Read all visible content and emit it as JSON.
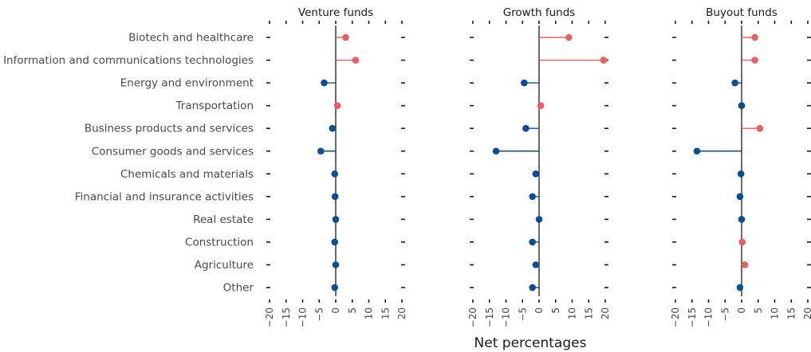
{
  "chart_data": {
    "type": "lollipop",
    "xlabel": "Net percentages",
    "xlim": [
      -20,
      20
    ],
    "xticks": [
      -20,
      -15,
      -10,
      -5,
      0,
      5,
      10,
      15,
      20
    ],
    "colors": {
      "positive": "#e8605f",
      "negative": "#0a4f96",
      "axis": "#1a1a1a"
    },
    "categories": [
      "Biotech and healthcare",
      "Information and communications technologies",
      "Energy and environment",
      "Transportation",
      "Business products and services",
      "Consumer goods and services",
      "Chemicals and materials",
      "Financial and insurance activities",
      "Real estate",
      "Construction",
      "Agriculture",
      "Other"
    ],
    "series": [
      {
        "name": "Venture funds",
        "values": [
          3,
          6,
          -3.5,
          0.5,
          -1,
          -4.5,
          -0.3,
          -0.2,
          0,
          -0.3,
          0,
          -0.3
        ]
      },
      {
        "name": "Growth funds",
        "values": [
          9,
          19.5,
          -4.5,
          0.5,
          -4,
          -13,
          -1,
          -2,
          0,
          -2,
          -1,
          -2
        ]
      },
      {
        "name": "Buyout funds",
        "values": [
          4,
          4,
          -2,
          0,
          5.5,
          -13.5,
          -0.2,
          -0.5,
          0,
          0.2,
          1,
          -0.5
        ]
      }
    ]
  }
}
